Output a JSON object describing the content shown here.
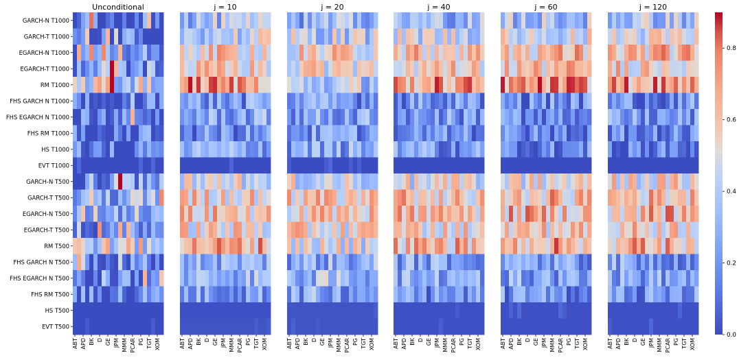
{
  "chart_data": {
    "type": "heatmap",
    "panels": [
      "Unconditional",
      "j = 10",
      "j = 20",
      "j = 40",
      "j = 60",
      "j = 120"
    ],
    "rows": [
      "GARCH-N T1000",
      "GARCH-T T1000",
      "EGARCH-N T1000",
      "EGARCH-T T1000",
      "RM T1000",
      "FHS GARCH N T1000",
      "FHS EGARCH N T1000",
      "FHS RM T1000",
      "HS T1000",
      "EVT T1000",
      "GARCH-N T500",
      "GARCH-T T500",
      "EGARCH-N T500",
      "EGARCH-T T500",
      "RM T500",
      "FHS GARCH N T500",
      "FHS EGARCH N T500",
      "FHS RM T500",
      "HS T500",
      "EVT T500"
    ],
    "x_tick_labels": [
      "ABT",
      "APD",
      "BK",
      "D",
      "GE",
      "JPM",
      "MMM",
      "PCAR",
      "PG",
      "TGT",
      "XOM"
    ],
    "n_columns": 22,
    "colormap": "coolwarm",
    "colorbar": {
      "min": 0.0,
      "max": 0.9,
      "ticks": [
        "0.0",
        "0.2",
        "0.4",
        "0.6",
        "0.8"
      ]
    },
    "row_mean_values": [
      [
        0.1,
        0.33,
        0.3,
        0.33,
        0.35,
        0.36
      ],
      [
        0.12,
        0.42,
        0.4,
        0.45,
        0.47,
        0.48
      ],
      [
        0.25,
        0.58,
        0.55,
        0.6,
        0.62,
        0.62
      ],
      [
        0.22,
        0.55,
        0.52,
        0.58,
        0.6,
        0.6
      ],
      [
        0.45,
        0.7,
        0.38,
        0.68,
        0.7,
        0.68
      ],
      [
        0.06,
        0.22,
        0.22,
        0.2,
        0.18,
        0.18
      ],
      [
        0.06,
        0.26,
        0.26,
        0.22,
        0.2,
        0.2
      ],
      [
        0.1,
        0.18,
        0.22,
        0.16,
        0.14,
        0.13
      ],
      [
        0.08,
        0.28,
        0.26,
        0.22,
        0.14,
        0.12
      ],
      [
        0.0,
        0.0,
        0.0,
        0.0,
        0.0,
        0.0
      ],
      [
        0.24,
        0.46,
        0.45,
        0.48,
        0.5,
        0.52
      ],
      [
        0.3,
        0.58,
        0.58,
        0.6,
        0.62,
        0.62
      ],
      [
        0.33,
        0.6,
        0.6,
        0.62,
        0.64,
        0.64
      ],
      [
        0.24,
        0.54,
        0.54,
        0.56,
        0.58,
        0.58
      ],
      [
        0.45,
        0.66,
        0.48,
        0.64,
        0.66,
        0.64
      ],
      [
        0.12,
        0.3,
        0.28,
        0.26,
        0.24,
        0.24
      ],
      [
        0.1,
        0.33,
        0.32,
        0.28,
        0.26,
        0.26
      ],
      [
        0.12,
        0.24,
        0.26,
        0.2,
        0.18,
        0.18
      ],
      [
        0.0,
        0.01,
        0.02,
        0.01,
        0.01,
        0.01
      ],
      [
        0.0,
        0.02,
        0.02,
        0.01,
        0.01,
        0.01
      ]
    ],
    "title": "",
    "xlabel": "",
    "ylabel": ""
  }
}
